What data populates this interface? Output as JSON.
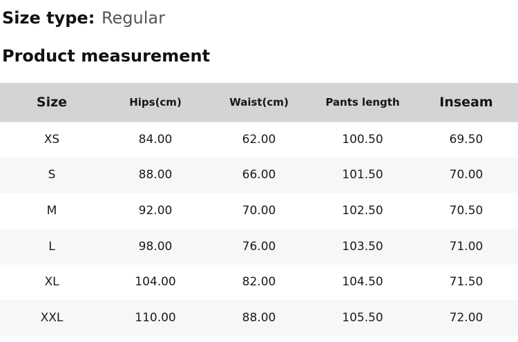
{
  "page": {
    "size_type": {
      "label": "Size type:",
      "value": "Regular"
    },
    "section_title": "Product measurement"
  },
  "table": {
    "columns": [
      {
        "key": "size",
        "label": "Size",
        "major": true
      },
      {
        "key": "hips",
        "label": "Hips(cm)",
        "major": false
      },
      {
        "key": "waist",
        "label": "Waist(cm)",
        "major": false
      },
      {
        "key": "pants_length",
        "label": "Pants length",
        "major": false
      },
      {
        "key": "inseam",
        "label": "Inseam",
        "major": true
      }
    ],
    "rows": [
      {
        "size": "XS",
        "hips": "84.00",
        "waist": "62.00",
        "pants_length": "100.50",
        "inseam": "69.50"
      },
      {
        "size": "S",
        "hips": "88.00",
        "waist": "66.00",
        "pants_length": "101.50",
        "inseam": "70.00"
      },
      {
        "size": "M",
        "hips": "92.00",
        "waist": "70.00",
        "pants_length": "102.50",
        "inseam": "70.50"
      },
      {
        "size": "L",
        "hips": "98.00",
        "waist": "76.00",
        "pants_length": "103.50",
        "inseam": "71.00"
      },
      {
        "size": "XL",
        "hips": "104.00",
        "waist": "82.00",
        "pants_length": "104.50",
        "inseam": "71.50"
      },
      {
        "size": "XXL",
        "hips": "110.00",
        "waist": "88.00",
        "pants_length": "105.50",
        "inseam": "72.00"
      }
    ]
  },
  "chart_data": {
    "type": "table",
    "title": "Product measurement",
    "subtitle": "Size type: Regular",
    "columns": [
      "Size",
      "Hips(cm)",
      "Waist(cm)",
      "Pants length",
      "Inseam"
    ],
    "rows": [
      [
        "XS",
        84.0,
        62.0,
        100.5,
        69.5
      ],
      [
        "S",
        88.0,
        66.0,
        101.5,
        70.0
      ],
      [
        "M",
        92.0,
        70.0,
        102.5,
        70.5
      ],
      [
        "L",
        98.0,
        76.0,
        103.5,
        71.0
      ],
      [
        "XL",
        104.0,
        82.0,
        104.5,
        71.5
      ],
      [
        "XXL",
        110.0,
        88.0,
        105.5,
        72.0
      ]
    ]
  },
  "colors": {
    "header_bg": "#d4d4d4",
    "row_alt_bg": "#f7f7f7",
    "text": "#1a1a1a",
    "muted_text": "#555555"
  }
}
